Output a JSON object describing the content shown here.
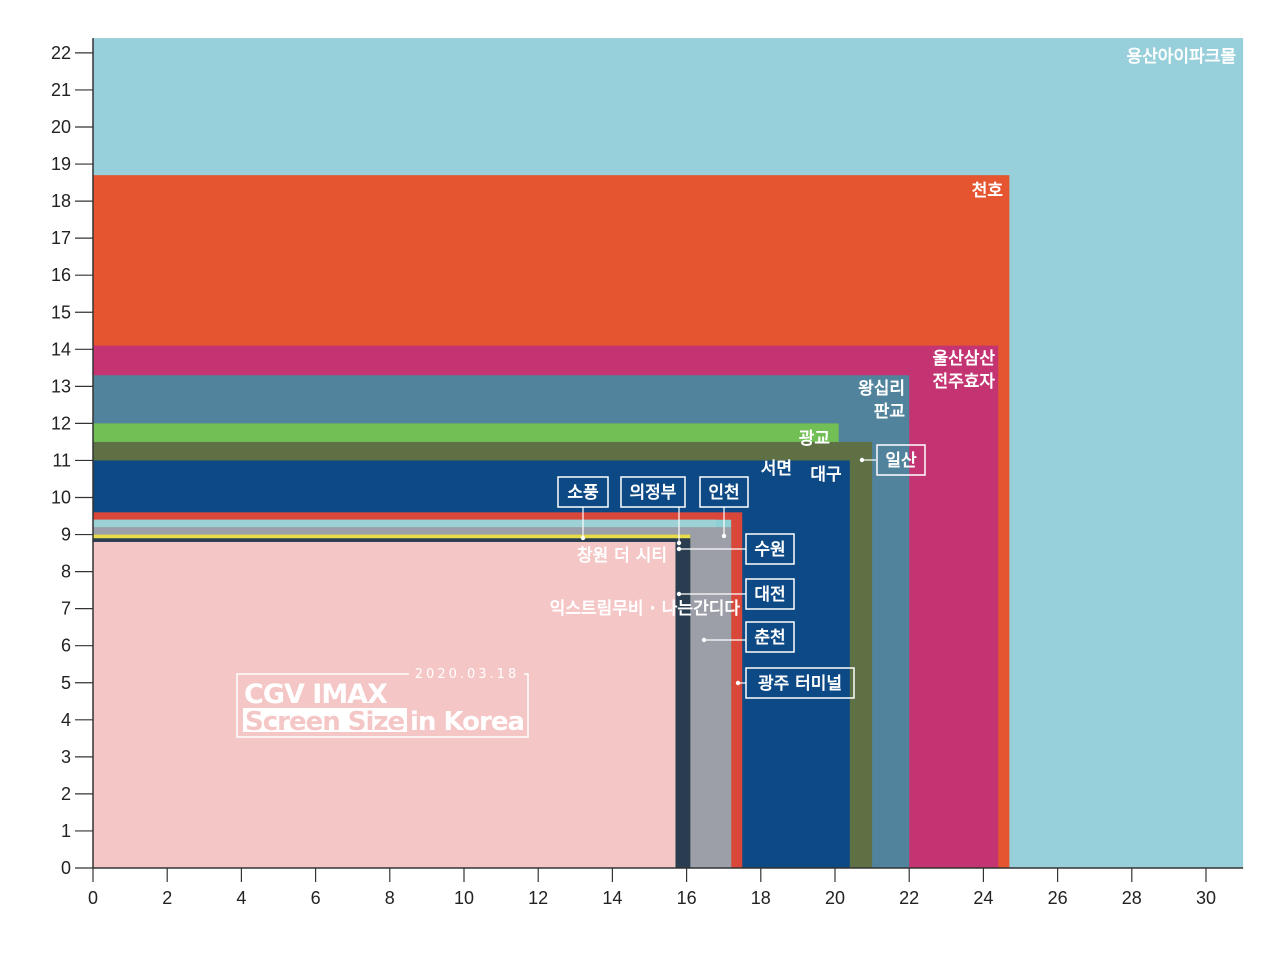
{
  "chart_data": {
    "type": "nested-rectangles",
    "xlim": [
      0,
      31
    ],
    "ylim": [
      0,
      22.3
    ],
    "x_ticks": [
      0,
      2,
      4,
      6,
      8,
      10,
      12,
      14,
      16,
      18,
      20,
      22,
      24,
      26,
      28,
      30
    ],
    "y_ticks": [
      0,
      1,
      2,
      3,
      4,
      5,
      6,
      7,
      8,
      9,
      10,
      11,
      12,
      13,
      14,
      15,
      16,
      17,
      18,
      19,
      20,
      21,
      22
    ],
    "grid": false,
    "screens": [
      {
        "name": "용산아이파크몰",
        "width": 31.0,
        "height": 22.4,
        "color": "#97d0da"
      },
      {
        "name": "천호",
        "width": 24.7,
        "height": 18.7,
        "color": "#e55630"
      },
      {
        "name": "울산삼산\n전주효자",
        "width": 24.4,
        "height": 14.1,
        "color": "#c43472"
      },
      {
        "name": "왕십리\n판교",
        "width": 22.0,
        "height": 13.3,
        "color": "#51849c"
      },
      {
        "name": "광교",
        "width": 20.1,
        "height": 12.0,
        "color": "#72bf55"
      },
      {
        "name": "서면",
        "width": 19.0,
        "height": 11.2,
        "color": "#b08f6a"
      },
      {
        "name": "일산",
        "width": 21.0,
        "height": 11.5,
        "color": "#5e7044"
      },
      {
        "name": "대구",
        "width": 20.4,
        "height": 11.0,
        "color": "#0d4a85"
      },
      {
        "name": "인천",
        "width": 17.5,
        "height": 9.6,
        "color": "#d9473a"
      },
      {
        "name": "춘천",
        "width": 17.2,
        "height": 9.4,
        "color": "#8ed0d3"
      },
      {
        "name": "소풍",
        "width": 16.8,
        "height": 9.4,
        "color": "#9cd2d5"
      },
      {
        "name": "수원",
        "width": 17.2,
        "height": 9.2,
        "color": "#9c9ea8"
      },
      {
        "name": "의정부",
        "width": 16.1,
        "height": 9.0,
        "color": "#2b3a58"
      },
      {
        "name": "창원 더 시티",
        "width": 16.1,
        "height": 9.0,
        "color": "#e9dc4b"
      },
      {
        "name": "대전",
        "width": 16.1,
        "height": 8.75,
        "color": "#4a8fb1"
      },
      {
        "name": "광주 터미널",
        "width": 16.1,
        "height": 8.9,
        "color": "#2a3d50"
      },
      {
        "name": "익스트림무비 · 나는간디다",
        "width": 15.7,
        "height": 8.8,
        "color": "#f5c6c6"
      }
    ]
  },
  "title": {
    "date": "2020.03.18",
    "line1": "CGV IMAX",
    "line2_highlight": "Screen Size",
    "line2_rest": "in Korea"
  }
}
